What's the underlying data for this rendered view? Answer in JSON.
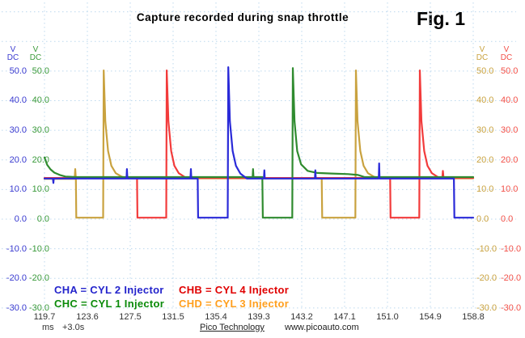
{
  "title": "Capture recorded during snap throttle",
  "figure_label": "Fig. 1",
  "footer": {
    "brand": "Pico Technology",
    "url": "www.picoauto.com"
  },
  "time_axis": {
    "tick_labels": [
      "119.7",
      "123.6",
      "127.5",
      "131.5",
      "135.4",
      "139.3",
      "143.2",
      "147.1",
      "151.0",
      "154.9",
      "158.8"
    ],
    "unit": "ms",
    "offset": "+3.0s"
  },
  "voltage_axes": [
    {
      "side": "left",
      "unit": "V",
      "coupling": "DC",
      "color": "#3b3bd0",
      "ticks": [
        "50.0",
        "40.0",
        "30.0",
        "20.0",
        "10.0",
        "0.0",
        "-10.0",
        "-20.0",
        "-30.0"
      ]
    },
    {
      "side": "left",
      "unit": "V",
      "coupling": "DC",
      "color": "#3a9a3a",
      "ticks": [
        "50.0",
        "40.0",
        "30.0",
        "20.0",
        "10.0",
        "0.0",
        "-10.0",
        "-20.0",
        "-30.0"
      ]
    },
    {
      "side": "right",
      "unit": "V",
      "coupling": "DC",
      "color": "#c9a23f",
      "ticks": [
        "50.0",
        "40.0",
        "30.0",
        "20.0",
        "10.0",
        "0.0",
        "-10.0",
        "-20.0",
        "-30.0"
      ]
    },
    {
      "side": "right",
      "unit": "V",
      "coupling": "DC",
      "color": "#f25048",
      "ticks": [
        "50.0",
        "40.0",
        "30.0",
        "20.0",
        "10.0",
        "0.0",
        "-10.0",
        "-20.0",
        "-30.0"
      ]
    }
  ],
  "legend": [
    {
      "channel": "CHA",
      "label": "CHA = CYL 2 Injector",
      "color": "#2424cc"
    },
    {
      "channel": "CHB",
      "label": "CHB = CYL 4 Injector",
      "color": "#e00000"
    },
    {
      "channel": "CHC",
      "label": "CHC = CYL 1 Injector",
      "color": "#0a8a0a"
    },
    {
      "channel": "CHD",
      "label": "CHD = CYL 3 Injector",
      "color": "#ff9f1e"
    }
  ],
  "chart_data": {
    "type": "line",
    "title": "Capture recorded during snap throttle",
    "x_unit": "ms",
    "x_range": [
      119.7,
      158.8
    ],
    "x_tick_step_ms": 3.91,
    "x_offset": "+3.0s",
    "y_unit": "V",
    "y_range": [
      -30,
      50
    ],
    "grid": true,
    "battery_supply_v": 14,
    "flyback_peak_v": 50,
    "injector_on_windows_ms": {
      "CHD_cyl3": [
        [
          122.6,
          125.1
        ],
        [
          145.1,
          148.1
        ]
      ],
      "CHB_cyl4": [
        [
          128.2,
          130.8
        ],
        [
          151.3,
          153.9
        ]
      ],
      "CHA_cyl2": [
        [
          133.7,
          136.4
        ],
        [
          157.1,
          null
        ]
      ],
      "CHC_cyl1": [
        [
          139.6,
          142.3
        ]
      ]
    },
    "series": [
      {
        "name": "CHD (CYL 3 Injector)",
        "color": "#c9a23f",
        "points": [
          [
            119.7,
            13.6
          ],
          [
            122.45,
            13.6
          ],
          [
            122.5,
            16.9
          ],
          [
            122.56,
            13.6
          ],
          [
            122.6,
            0.5
          ],
          [
            125.05,
            0.5
          ],
          [
            125.1,
            50.2
          ],
          [
            125.25,
            33
          ],
          [
            125.5,
            23
          ],
          [
            125.8,
            18
          ],
          [
            126.2,
            15.5
          ],
          [
            126.75,
            14.3
          ],
          [
            127.3,
            13.8
          ],
          [
            144.98,
            13.8
          ],
          [
            145.03,
            0.5
          ],
          [
            148.05,
            0.5
          ],
          [
            148.1,
            50.2
          ],
          [
            148.25,
            33
          ],
          [
            148.5,
            23
          ],
          [
            148.8,
            18
          ],
          [
            149.2,
            15.5
          ],
          [
            149.75,
            14.3
          ],
          [
            150.3,
            13.8
          ],
          [
            158.8,
            13.8
          ]
        ]
      },
      {
        "name": "CHB (CYL 4 Injector)",
        "color": "#f23b3b",
        "points": [
          [
            119.7,
            13.9
          ],
          [
            128.14,
            13.9
          ],
          [
            128.18,
            0.5
          ],
          [
            130.8,
            0.5
          ],
          [
            130.85,
            50.2
          ],
          [
            131.0,
            33
          ],
          [
            131.25,
            23
          ],
          [
            131.55,
            18
          ],
          [
            131.95,
            15.5
          ],
          [
            132.5,
            14.2
          ],
          [
            133.05,
            13.9
          ],
          [
            151.22,
            13.9
          ],
          [
            151.26,
            0.5
          ],
          [
            153.88,
            0.5
          ],
          [
            153.93,
            50.2
          ],
          [
            154.08,
            33
          ],
          [
            154.33,
            23
          ],
          [
            154.63,
            18
          ],
          [
            155.03,
            15.5
          ],
          [
            155.58,
            14.2
          ],
          [
            155.98,
            13.9
          ],
          [
            156.03,
            16.3
          ],
          [
            156.09,
            13.9
          ],
          [
            158.8,
            13.9
          ]
        ]
      },
      {
        "name": "CHC (CYL 1 Injector)",
        "color": "#2f8b2f",
        "points": [
          [
            119.7,
            20.8
          ],
          [
            119.95,
            18.3
          ],
          [
            120.25,
            16.8
          ],
          [
            120.6,
            15.7
          ],
          [
            121.1,
            14.9
          ],
          [
            121.6,
            14.4
          ],
          [
            122.6,
            14.2
          ],
          [
            138.68,
            14.2
          ],
          [
            138.72,
            16.9
          ],
          [
            138.76,
            14.2
          ],
          [
            139.57,
            14.2
          ],
          [
            139.61,
            0.5
          ],
          [
            142.3,
            0.5
          ],
          [
            142.35,
            51.0
          ],
          [
            142.5,
            33
          ],
          [
            142.75,
            23
          ],
          [
            143.1,
            18.5
          ],
          [
            143.7,
            16.3
          ],
          [
            144.6,
            15.6
          ],
          [
            145.9,
            15.4
          ],
          [
            147.4,
            15.2
          ],
          [
            148.3,
            14.9
          ],
          [
            148.9,
            14.2
          ],
          [
            158.8,
            14.2
          ]
        ]
      },
      {
        "name": "CHA (CYL 2 Injector)",
        "color": "#2a2ad8",
        "points": [
          [
            119.7,
            13.7
          ],
          [
            120.47,
            13.7
          ],
          [
            120.51,
            12.2
          ],
          [
            120.55,
            13.7
          ],
          [
            127.18,
            13.7
          ],
          [
            127.22,
            16.9
          ],
          [
            127.26,
            13.7
          ],
          [
            133.01,
            13.7
          ],
          [
            133.05,
            16.9
          ],
          [
            133.09,
            13.7
          ],
          [
            133.67,
            13.7
          ],
          [
            133.71,
            0.5
          ],
          [
            136.41,
            0.5
          ],
          [
            136.46,
            51.3
          ],
          [
            136.61,
            33
          ],
          [
            136.86,
            23
          ],
          [
            137.16,
            18
          ],
          [
            137.56,
            15.4
          ],
          [
            138.15,
            13.7
          ],
          [
            139.71,
            13.7
          ],
          [
            139.75,
            16.5
          ],
          [
            139.79,
            13.7
          ],
          [
            144.36,
            13.7
          ],
          [
            144.4,
            16.5
          ],
          [
            144.44,
            13.7
          ],
          [
            150.18,
            13.7
          ],
          [
            150.22,
            18.8
          ],
          [
            150.26,
            13.7
          ],
          [
            157.04,
            13.7
          ],
          [
            157.08,
            0.5
          ],
          [
            158.8,
            0.5
          ]
        ]
      }
    ]
  }
}
